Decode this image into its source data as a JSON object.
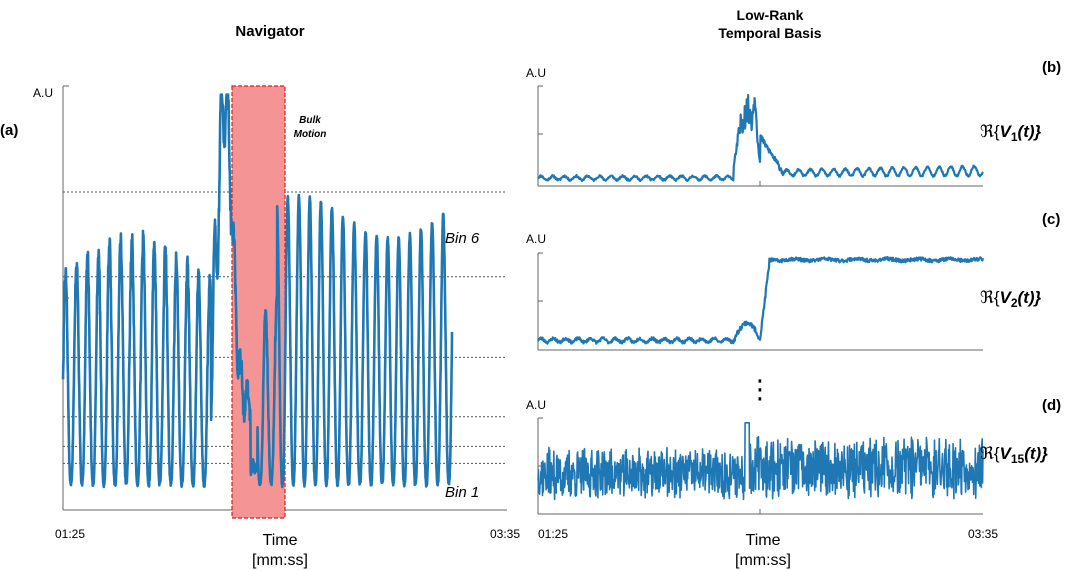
{
  "panel_labels": {
    "a": "(a)",
    "b": "(b)",
    "c": "(c)",
    "d": "(d)"
  },
  "left": {
    "title": "Navigator",
    "y_axis_label": "A.U",
    "bulk_motion_label_line1": "Bulk",
    "bulk_motion_label_line2": "Motion",
    "bin_top_label": "Bin 6",
    "bin_bottom_label": "Bin 1",
    "x_tick_start": "01:25",
    "x_tick_end": "03:35",
    "x_label_line1": "Time",
    "x_label_line2": "[mm:ss]",
    "highlight_fill": "#f59494",
    "highlight_border": "#d42020"
  },
  "right": {
    "title_line1": "Low-Rank",
    "title_line2": "Temporal Basis",
    "y_axis_label": "A.U",
    "ellipsis": "⋮",
    "x_tick_start": "01:25",
    "x_tick_end": "03:35",
    "x_label_line1": "Time",
    "x_label_line2": "[mm:ss]",
    "basis_labels": [
      {
        "pre": "ℜ{",
        "main": "V",
        "sub": "1",
        "post": "(t)}"
      },
      {
        "pre": "ℜ{",
        "main": "V",
        "sub": "2",
        "post": "(t)}"
      },
      {
        "pre": "ℜ{",
        "main": "V",
        "sub": "15",
        "post": "(t)}"
      }
    ]
  },
  "chart_data": [
    {
      "id": "a",
      "type": "line",
      "title": "Navigator",
      "xlabel": "Time [mm:ss]",
      "ylabel": "A.U",
      "x_range": [
        "01:25",
        "03:35"
      ],
      "x_domain": [
        0,
        1
      ],
      "y_domain": [
        0,
        1
      ],
      "series": [
        {
          "color": "#1f77b4",
          "style": "respiratory-oscillation",
          "cycles": 35,
          "baseline": 0.06,
          "peak": 0.62,
          "seed": 7
        }
      ],
      "bulk_motion_interval": [
        0.38,
        0.5
      ],
      "bin_thresholds": [
        0.11,
        0.15,
        0.22,
        0.36,
        0.55,
        0.75
      ]
    },
    {
      "id": "b",
      "type": "line",
      "ylabel": "A.U",
      "x_domain": [
        0,
        1
      ],
      "y_domain": [
        0,
        1
      ],
      "series": [
        {
          "color": "#1f77b4",
          "style": "basis-1",
          "seed": 11
        }
      ]
    },
    {
      "id": "c",
      "type": "line",
      "ylabel": "A.U",
      "x_domain": [
        0,
        1
      ],
      "y_domain": [
        0,
        1
      ],
      "series": [
        {
          "color": "#1f77b4",
          "style": "basis-2",
          "seed": 23
        }
      ]
    },
    {
      "id": "d",
      "type": "line",
      "ylabel": "A.U",
      "x_domain": [
        0,
        1
      ],
      "y_domain": [
        0,
        1
      ],
      "series": [
        {
          "color": "#1f77b4",
          "style": "basis-15",
          "seed": 37
        }
      ]
    }
  ]
}
